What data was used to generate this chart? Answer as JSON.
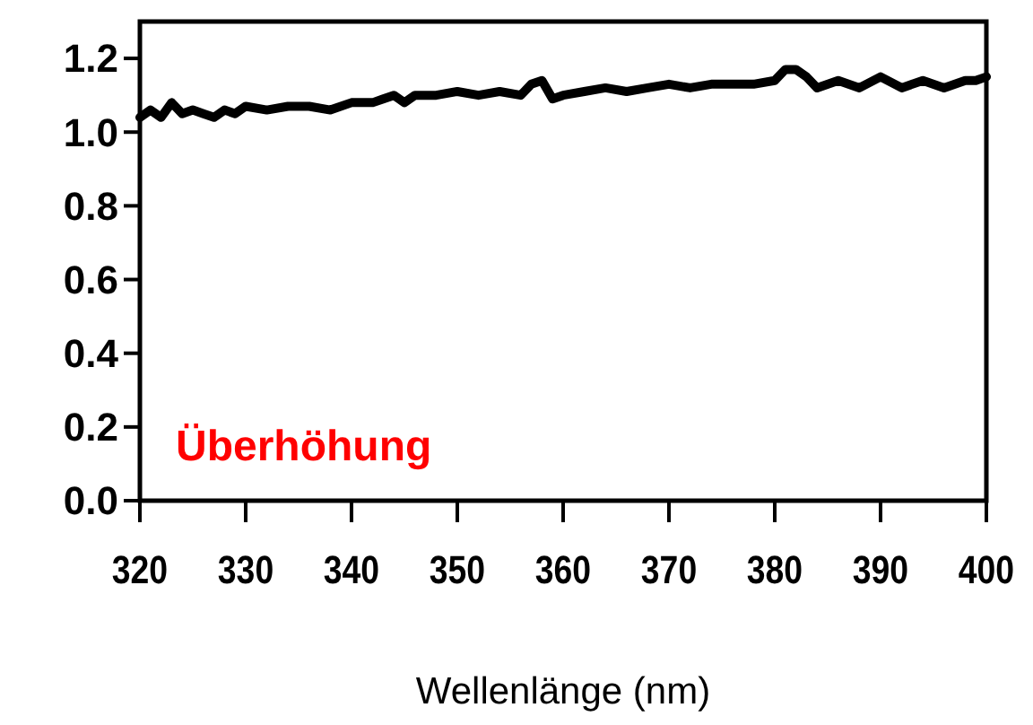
{
  "chart_data": {
    "type": "line",
    "xlabel": "Wellenlänge (nm)",
    "annotations": [
      "Überhöhung"
    ],
    "x": [
      320,
      321,
      322,
      323,
      324,
      325,
      326,
      327,
      328,
      329,
      330,
      332,
      334,
      336,
      338,
      340,
      342,
      343,
      344,
      345,
      346,
      348,
      350,
      352,
      354,
      356,
      357,
      358,
      359,
      360,
      362,
      364,
      366,
      368,
      370,
      372,
      374,
      376,
      378,
      380,
      381,
      382,
      383,
      384,
      386,
      388,
      390,
      392,
      394,
      396,
      398,
      399,
      400
    ],
    "series": [
      {
        "color": "#000000",
        "values": [
          1.04,
          1.06,
          1.04,
          1.08,
          1.05,
          1.06,
          1.05,
          1.04,
          1.06,
          1.05,
          1.07,
          1.06,
          1.07,
          1.07,
          1.06,
          1.08,
          1.08,
          1.09,
          1.1,
          1.08,
          1.1,
          1.1,
          1.11,
          1.1,
          1.11,
          1.1,
          1.13,
          1.14,
          1.09,
          1.1,
          1.11,
          1.12,
          1.11,
          1.12,
          1.13,
          1.12,
          1.13,
          1.13,
          1.13,
          1.14,
          1.17,
          1.17,
          1.15,
          1.12,
          1.14,
          1.12,
          1.15,
          1.12,
          1.14,
          1.12,
          1.14,
          1.14,
          1.15
        ]
      }
    ],
    "xlim": [
      320,
      400
    ],
    "xticks": [
      320,
      330,
      340,
      350,
      360,
      370,
      380,
      390,
      400
    ],
    "ylim": [
      0,
      1.3
    ],
    "yticks": [
      {
        "value": 0,
        "label": "0.0"
      },
      {
        "value": 0.2,
        "label": "0.2"
      },
      {
        "value": 0.4,
        "label": "0.4"
      },
      {
        "value": 0.6,
        "label": "0.6"
      },
      {
        "value": 0.8,
        "label": "0.8"
      },
      {
        "value": 1,
        "label": "1.0"
      },
      {
        "value": 1.2,
        "label": "1.2"
      }
    ],
    "grid": false,
    "marker": "none",
    "line_style": "solid"
  }
}
